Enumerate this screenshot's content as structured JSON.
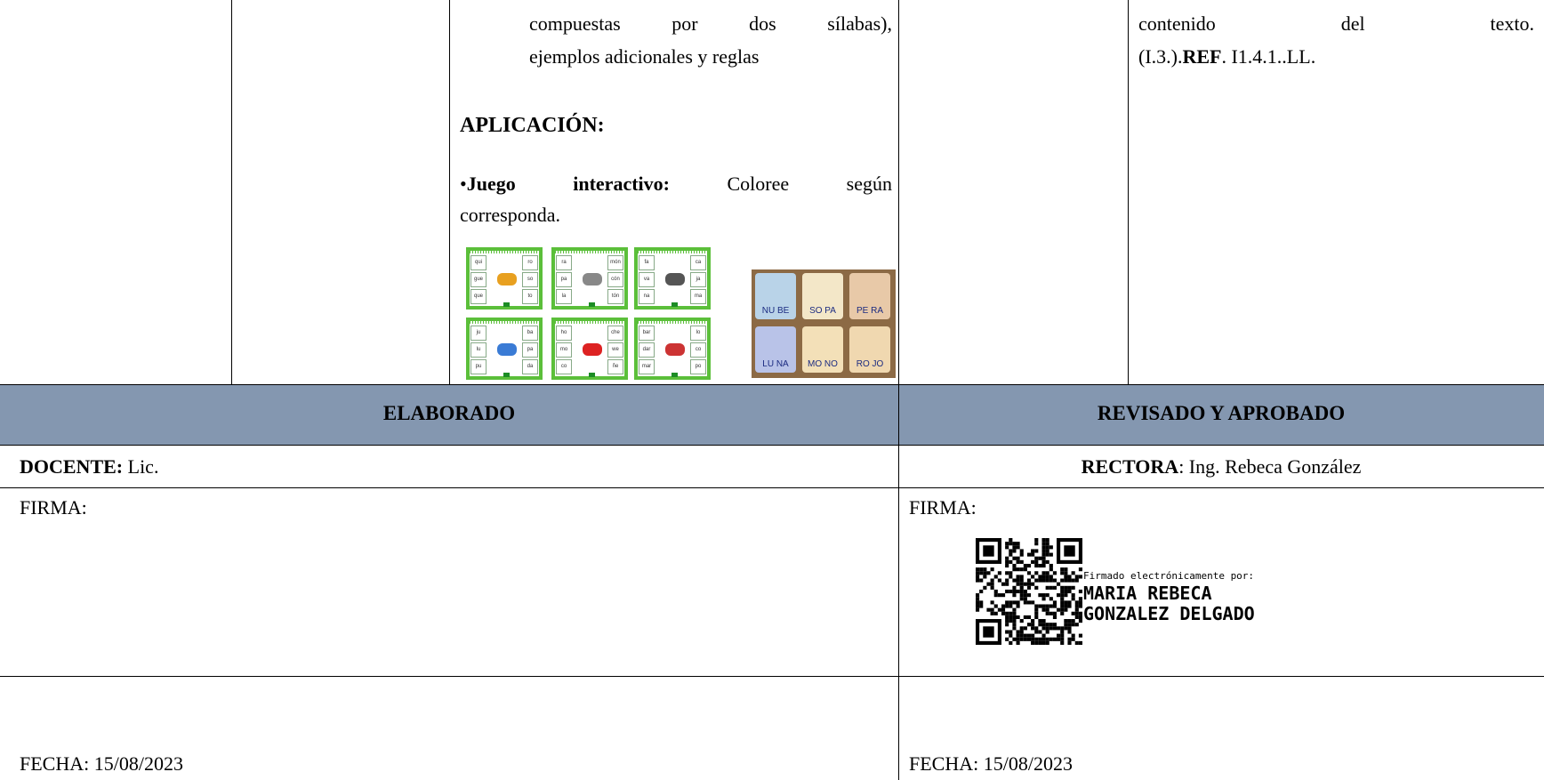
{
  "table": {
    "top_row": {
      "cell3": {
        "lines": [
          "compuestas por dos sílabas),",
          "ejemplos adicionales y reglas"
        ],
        "heading": "APLICACIÓN:",
        "item": {
          "bullet": "•",
          "bold": "Juego interactivo:",
          "line1": " Coloree según",
          "line2": "corresponda."
        },
        "game_cards": [
          {
            "left": [
              "qui",
              "gue",
              "que"
            ],
            "right": [
              "ro",
              "so",
              "to"
            ]
          },
          {
            "left": [
              "ra",
              "pa",
              "la"
            ],
            "right": [
              "món",
              "cón",
              "tón"
            ]
          },
          {
            "left": [
              "fa",
              "va",
              "na"
            ],
            "right": [
              "ca",
              "ja",
              "ma"
            ]
          },
          {
            "left": [
              "ju",
              "lu",
              "pu"
            ],
            "right": [
              "ba",
              "pa",
              "da"
            ]
          },
          {
            "left": [
              "ho",
              "mo",
              "co"
            ],
            "right": [
              "che",
              "we",
              "ñe"
            ]
          },
          {
            "left": [
              "bar",
              "dar",
              "mar"
            ],
            "right": [
              "lo",
              "co",
              "po"
            ]
          }
        ],
        "photo_cards": [
          "NU BE",
          "SO PA",
          "PE RA",
          "LU NA",
          "MO NO",
          "RO JO"
        ]
      },
      "cell5": {
        "line1": "contenido del texto.",
        "before": "(I.3.).",
        "bold": "REF",
        "after": ". I1.4.1..LL."
      }
    },
    "header": {
      "left": "ELABORADO",
      "right": "REVISADO Y APROBADO"
    },
    "role_row": {
      "left": {
        "bold": "DOCENTE:",
        "text": " Lic."
      },
      "right": {
        "bold": "RECTORA",
        "text": ": Ing. Rebeca González"
      }
    },
    "signature_row": {
      "left": "FIRMA:",
      "right": "FIRMA:",
      "stamp": {
        "caption": "Firmado electrónicamente por:",
        "name_line1": "MARIA REBECA",
        "name_line2": "GONZALEZ DELGADO"
      }
    },
    "date_row": {
      "left": "FECHA: 15/08/2023",
      "right": "FECHA: 15/08/2023"
    }
  }
}
